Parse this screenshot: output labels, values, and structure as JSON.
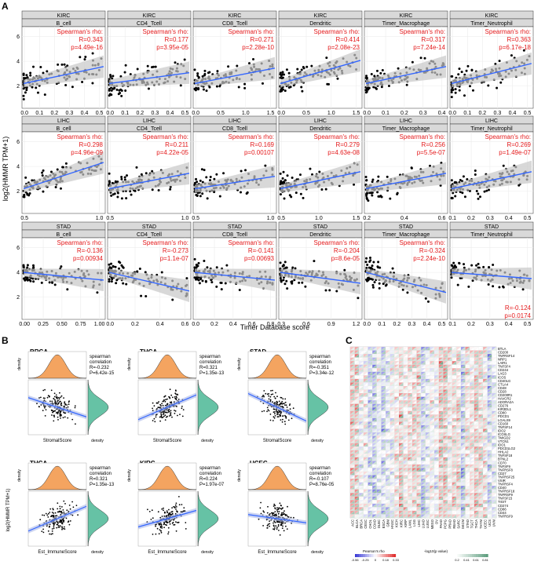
{
  "panel_labels": {
    "a": "A",
    "b": "B",
    "c": "C"
  },
  "panel_a": {
    "ylabel": "log2(HMMR TPM+1)",
    "xlabel": "Timer Database score",
    "stat_label": "Spearman's rho:",
    "rows": [
      {
        "cancer": "KIRC",
        "y_ticks": [
          "2",
          "4",
          "6"
        ],
        "cells": [
          {
            "cell": "B_cell",
            "R": "R=0.343",
            "p": "p=4.49e-16",
            "x_ticks": [
              "0.0",
              "0.1",
              "0.2",
              "0.3",
              "0.4",
              "0.5"
            ],
            "xmax": 0.5,
            "slope": 0.55
          },
          {
            "cell": "CD4_Tcell",
            "R": "R=0.177",
            "p": "p=3.95e-05",
            "x_ticks": [
              "0.0",
              "0.1",
              "0.2",
              "0.3",
              "0.4",
              "0.5"
            ],
            "xmax": 0.5,
            "slope": 0.35
          },
          {
            "cell": "CD8_Tcell",
            "R": "R=0.271",
            "p": "p=2.28e-10",
            "x_ticks": [
              "0.0",
              "0.5",
              "1.0",
              "1.5"
            ],
            "xmax": 1.5,
            "slope": 0.5
          },
          {
            "cell": "Dendritic",
            "R": "R=0.414",
            "p": "p=2.08e-23",
            "x_ticks": [
              "0.0",
              "0.5",
              "1.0",
              "1.5"
            ],
            "xmax": 1.5,
            "slope": 0.75
          },
          {
            "cell": "Timer_Macrophage",
            "R": "R=0.317",
            "p": "p=7.24e-14",
            "x_ticks": [
              "0.0",
              "0.1",
              "0.2",
              "0.3",
              "0.4"
            ],
            "xmax": 0.4,
            "slope": 0.55
          },
          {
            "cell": "Timer_Neutrophil",
            "R": "R=0.363",
            "p": "p=6.17e-18",
            "x_ticks": [
              "0.0",
              "0.1",
              "0.2",
              "0.3",
              "0.4",
              "0.5"
            ],
            "xmax": 0.5,
            "slope": 0.65
          }
        ]
      },
      {
        "cancer": "LIHC",
        "y_ticks": [
          "2",
          "4",
          "6"
        ],
        "cells": [
          {
            "cell": "B_cell",
            "R": "R=0.298",
            "p": "p=4.96e-09",
            "x_ticks": [
              "0.5",
              "1.0"
            ],
            "xmax": 1.2,
            "slope": 0.85
          },
          {
            "cell": "CD4_Tcell",
            "R": "R=0.211",
            "p": "p=4.22e-05",
            "x_ticks": [
              "0.5",
              "1.0"
            ],
            "xmax": 1.2,
            "slope": 0.5
          },
          {
            "cell": "CD8_Tcell",
            "R": "R=0.169",
            "p": "p=0.00107",
            "x_ticks": [
              "0.5",
              "1.0"
            ],
            "xmax": 1.2,
            "slope": 0.4
          },
          {
            "cell": "Dendritic",
            "R": "R=0.279",
            "p": "p=4.63e-08",
            "x_ticks": [
              "0.5",
              "1.0",
              "1.5"
            ],
            "xmax": 1.7,
            "slope": 0.55
          },
          {
            "cell": "Timer_Macrophage",
            "R": "R=0.256",
            "p": "p=5.5e-07",
            "x_ticks": [
              "0.2",
              "0.4",
              "0.6"
            ],
            "xmax": 0.7,
            "slope": 0.5
          },
          {
            "cell": "Timer_Neutrophil",
            "R": "R=0.269",
            "p": "p=1.49e-07",
            "x_ticks": [
              "0.1",
              "0.2",
              "0.3",
              "0.4",
              "0.5"
            ],
            "xmax": 0.55,
            "slope": 0.55
          }
        ]
      },
      {
        "cancer": "STAD",
        "y_ticks": [
          "2",
          "4",
          "6"
        ],
        "cells": [
          {
            "cell": "B_cell",
            "R": "R=-0.136",
            "p": "p=0.00934",
            "x_ticks": [
              "0.00",
              "0.25",
              "0.50",
              "0.75",
              "1.00"
            ],
            "xmax": 1.0,
            "slope": -0.25
          },
          {
            "cell": "CD4_Tcell",
            "R": "R=-0.273",
            "p": "p=1.1e-07",
            "x_ticks": [
              "0.0",
              "0.2",
              "0.4",
              "0.6"
            ],
            "xmax": 0.6,
            "slope": -0.6
          },
          {
            "cell": "CD8_Tcell",
            "R": "R=-0.141",
            "p": "p=0.00693",
            "x_ticks": [
              "0.0",
              "0.2",
              "0.4",
              "0.6",
              "0.8"
            ],
            "xmax": 0.8,
            "slope": -0.25
          },
          {
            "cell": "Dendritic",
            "R": "R=-0.204",
            "p": "p=8.6e-05",
            "x_ticks": [
              "0.3",
              "0.6",
              "0.9",
              "1.2"
            ],
            "xmax": 1.3,
            "slope": -0.35
          },
          {
            "cell": "Timer_Macrophage",
            "R": "R=-0.324",
            "p": "p=2.24e-10",
            "x_ticks": [
              "0.0",
              "0.1",
              "0.2",
              "0.3",
              "0.4",
              "0.5"
            ],
            "xmax": 0.5,
            "slope": -0.65
          },
          {
            "cell": "Timer_Neutrophil",
            "R": "R=-0.124",
            "p": "p=0.0174",
            "x_ticks": [
              "0.1",
              "0.2",
              "0.3",
              "0.4",
              "0.5"
            ],
            "xmax": 0.55,
            "slope": -0.2
          }
        ]
      }
    ]
  },
  "panel_b": {
    "density_label": "density",
    "ylabel": "log2(HMMR TPM+1)",
    "stat_lines": [
      "spearman",
      "correlation"
    ],
    "plots": [
      {
        "cancer": "BRCA",
        "R": "R=-0.232",
        "p": "P=6.42e-15",
        "xlabel": "StromalScore",
        "slope": -0.35
      },
      {
        "cancer": "THCA",
        "R": "R=0.321",
        "p": "P=1.35e-13",
        "xlabel": "StromalScore",
        "slope": 0.45
      },
      {
        "cancer": "STAD",
        "R": "R=-0.351",
        "p": "P=3.34e-12",
        "xlabel": "StromalScore",
        "slope": -0.5
      },
      {
        "cancer": "THCA",
        "R": "R=0.321",
        "p": "P=1.35e-13",
        "xlabel": "Est_ImmuneScore",
        "slope": 0.45
      },
      {
        "cancer": "KIRC",
        "R": "R=0.224",
        "p": "P=1.97e-07",
        "xlabel": "Est_ImmuneScore",
        "slope": 0.3
      },
      {
        "cancer": "UCEC",
        "R": "R=-0.107",
        "p": "P=8.76e-05",
        "xlabel": "Est_ImmuneScore",
        "slope": -0.15
      }
    ]
  },
  "panel_c": {
    "genes": [
      "BTLA",
      "CD200",
      "TNFRSF14",
      "NRP1",
      "LAIR1",
      "TNFSF4",
      "CD244",
      "LAG3",
      "ICOS",
      "CD40LG",
      "CTLA4",
      "CD48",
      "CD28",
      "CD200R1",
      "HAVCR2",
      "ADORA2A",
      "CD276",
      "KIR3DL1",
      "CD80",
      "PDCD1",
      "LGALS9",
      "CD160",
      "TNFSF14",
      "IDO2",
      "ICOSLG",
      "TMIGD2",
      "VTCN1",
      "IDO1",
      "PDCD1LG2",
      "HHLA2",
      "TNFSF18",
      "BTNL2",
      "CD70",
      "TNFSF9",
      "TNFRSF8",
      "CD27",
      "TNFRSF25",
      "VSIR",
      "TNFRSF4",
      "CD40",
      "TNFRSF18",
      "TNFRSF9",
      "TNFSF15",
      "TIGIT",
      "CD274",
      "CD86",
      "CD44",
      "TNFRSF9"
    ],
    "cancers": [
      "ACC",
      "BLCA",
      "BRCA",
      "CESC",
      "CHOL",
      "COAD",
      "DLBC",
      "ESCA",
      "GBM",
      "HNSC",
      "KICH",
      "KIRC",
      "KIRP",
      "LAML",
      "LGG",
      "LIHC",
      "LUAD",
      "LUSC",
      "MESO",
      "OV",
      "PAAD",
      "PCPG",
      "PRAD",
      "READ",
      "SARC",
      "SKCM",
      "STAD",
      "TGCT",
      "THCA",
      "THYM",
      "UCEC",
      "UCS",
      "UVM"
    ],
    "legend_rho_label": "Pearson's rho",
    "legend_rho_ticks": [
      "-0.56",
      "-0.25",
      "0",
      "0.18",
      "0.33"
    ],
    "legend_p_label": "-log10(p value)",
    "legend_p_ticks": [
      "0.2",
      "0.41",
      "0.61",
      "0.81"
    ],
    "colors": {
      "neg": "#3c3cd6",
      "pos": "#e03030",
      "sig": "#5f9e7f"
    }
  },
  "colors": {
    "label_red": "#e41a1c",
    "line_blue": "#3366ff",
    "band": "#c8c8c8",
    "strip": "#d9d9d9",
    "density_orange": "#f4a460",
    "density_teal": "#66c2a5"
  }
}
